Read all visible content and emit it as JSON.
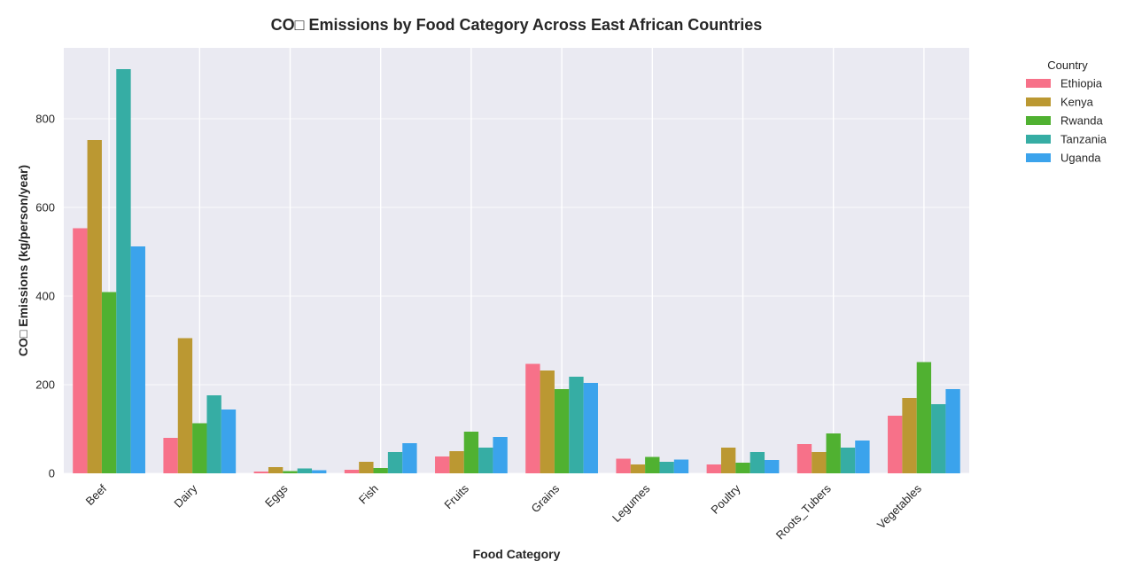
{
  "chart_data": {
    "type": "bar",
    "title": "CO□ Emissions by Food Category Across East African Countries",
    "xlabel": "Food Category",
    "ylabel": "CO□ Emissions (kg/person/year)",
    "ylim": [
      0,
      960
    ],
    "yticks": [
      0,
      200,
      400,
      600,
      800
    ],
    "grid": true,
    "legend_title": "Country",
    "legend_position": "outside-top-right",
    "categories": [
      "Beef",
      "Dairy",
      "Eggs",
      "Fish",
      "Fruits",
      "Grains",
      "Legumes",
      "Poultry",
      "Roots_Tubers",
      "Vegetables"
    ],
    "series": [
      {
        "name": "Ethiopia",
        "color": "#f77189",
        "values": [
          553,
          80,
          4,
          8,
          38,
          247,
          33,
          20,
          66,
          130
        ]
      },
      {
        "name": "Kenya",
        "color": "#bb9832",
        "values": [
          752,
          305,
          14,
          26,
          50,
          232,
          20,
          58,
          48,
          170
        ]
      },
      {
        "name": "Rwanda",
        "color": "#50b131",
        "values": [
          409,
          113,
          5,
          12,
          94,
          190,
          37,
          24,
          90,
          251
        ]
      },
      {
        "name": "Tanzania",
        "color": "#36ada4",
        "values": [
          912,
          176,
          11,
          48,
          58,
          218,
          26,
          48,
          58,
          156
        ]
      },
      {
        "name": "Uganda",
        "color": "#3ba3ec",
        "values": [
          512,
          144,
          7,
          68,
          82,
          204,
          31,
          30,
          74,
          190
        ]
      }
    ]
  }
}
